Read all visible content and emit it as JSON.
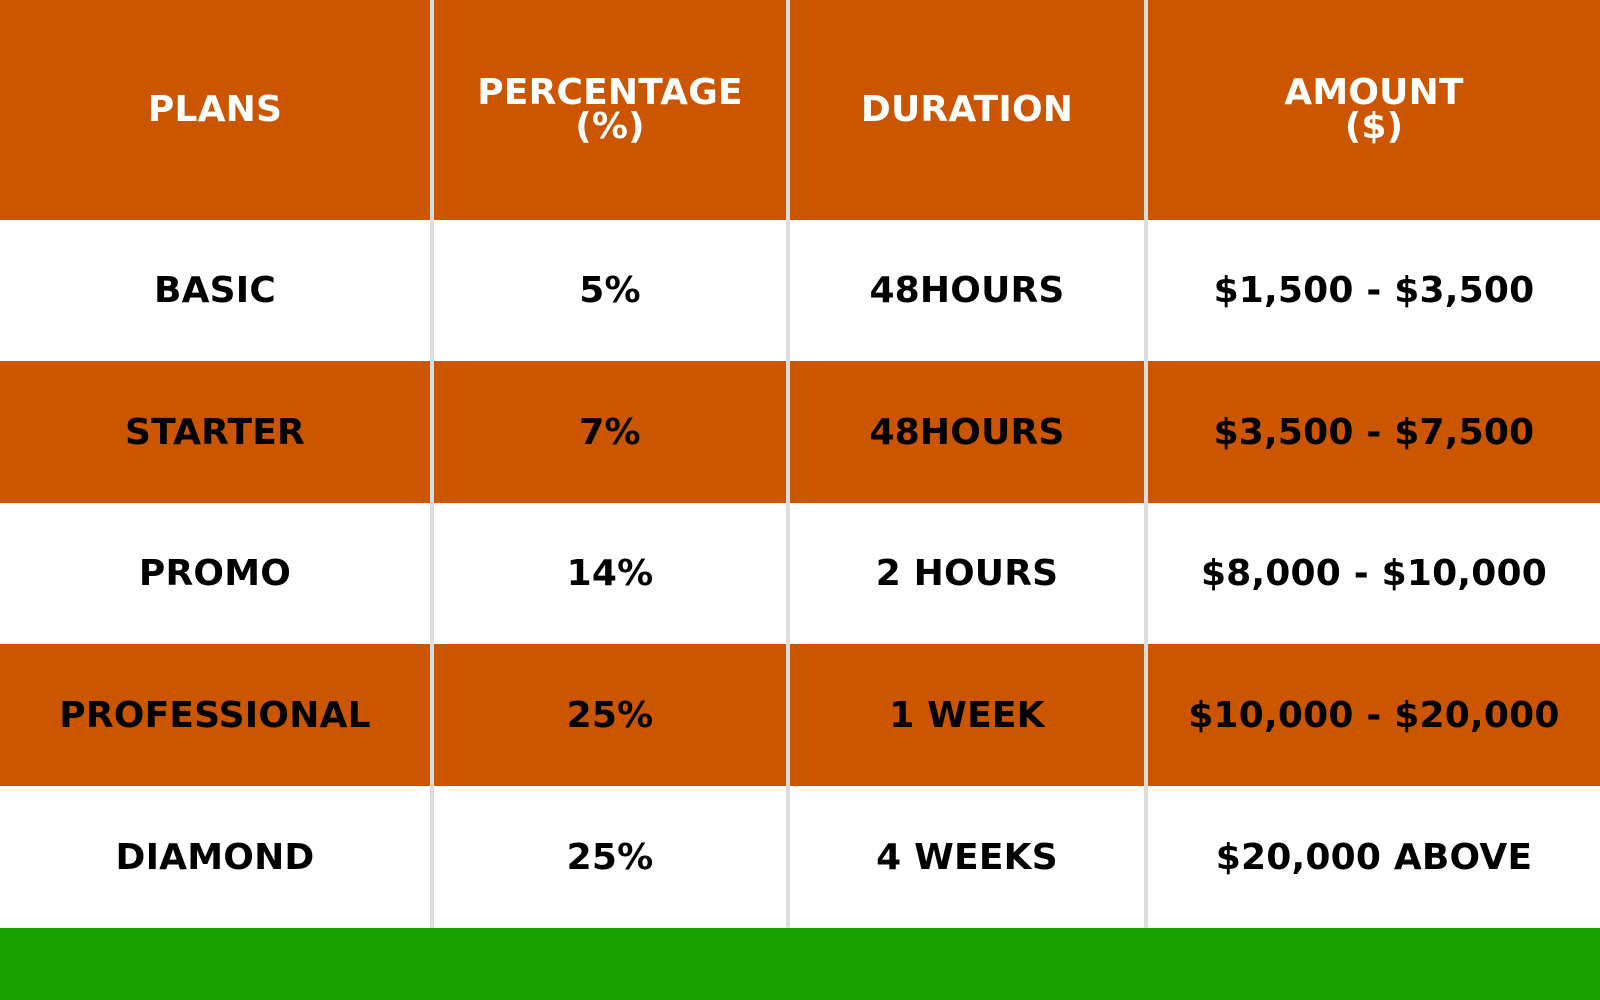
{
  "colors": {
    "accent": "#cc5500",
    "row_white": "#ffffff",
    "header_text": "#ffffff",
    "body_text": "#000000",
    "divider": "#dcdcdc",
    "footer": "#18a200"
  },
  "table": {
    "headers": {
      "plans": "PLANS",
      "percentage_line1": "PERCENTAGE",
      "percentage_line2": "(%)",
      "duration": "DURATION",
      "amount_line1": "AMOUNT",
      "amount_line2": "($)"
    },
    "rows": [
      {
        "plan": "BASIC",
        "percentage": "5%",
        "duration": "48HOURS",
        "amount": "$1,500 - $3,500"
      },
      {
        "plan": "STARTER",
        "percentage": "7%",
        "duration": "48HOURS",
        "amount": "$3,500 - $7,500"
      },
      {
        "plan": "PROMO",
        "percentage": "14%",
        "duration": "2 HOURS",
        "amount": "$8,000 - $10,000"
      },
      {
        "plan": "PROFESSIONAL",
        "percentage": "25%",
        "duration": "1 WEEK",
        "amount": "$10,000 - $20,000"
      },
      {
        "plan": "DIAMOND",
        "percentage": "25%",
        "duration": "4 WEEKS",
        "amount": "$20,000 ABOVE"
      }
    ]
  }
}
